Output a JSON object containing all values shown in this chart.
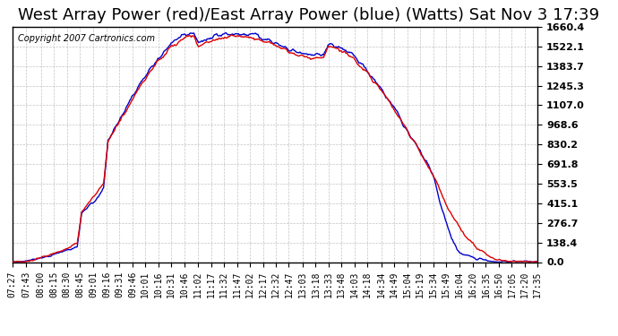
{
  "title": "West Array Power (red)/East Array Power (blue) (Watts) Sat Nov 3 17:39",
  "copyright": "Copyright 2007 Cartronics.com",
  "title_fontsize": 13,
  "background_color": "#ffffff",
  "plot_bg_color": "#ffffff",
  "grid_color": "#aaaaaa",
  "y_ticks": [
    0.0,
    138.4,
    276.7,
    415.1,
    553.5,
    691.8,
    830.2,
    968.6,
    1107.0,
    1245.3,
    1383.7,
    1522.1,
    1660.4
  ],
  "y_max": 1660.4,
  "y_min": 0.0,
  "x_tick_labels": [
    "07:27",
    "07:43",
    "08:00",
    "08:15",
    "08:30",
    "08:45",
    "09:01",
    "09:16",
    "09:31",
    "09:46",
    "10:01",
    "10:16",
    "10:31",
    "10:46",
    "11:02",
    "11:17",
    "11:32",
    "11:47",
    "12:02",
    "12:17",
    "12:32",
    "12:47",
    "13:03",
    "13:18",
    "13:33",
    "13:48",
    "14:03",
    "14:18",
    "14:34",
    "14:49",
    "15:04",
    "15:19",
    "15:34",
    "15:49",
    "16:04",
    "16:20",
    "16:35",
    "16:50",
    "17:05",
    "17:20",
    "17:35"
  ],
  "red_color": "#dd0000",
  "blue_color": "#0000cc"
}
